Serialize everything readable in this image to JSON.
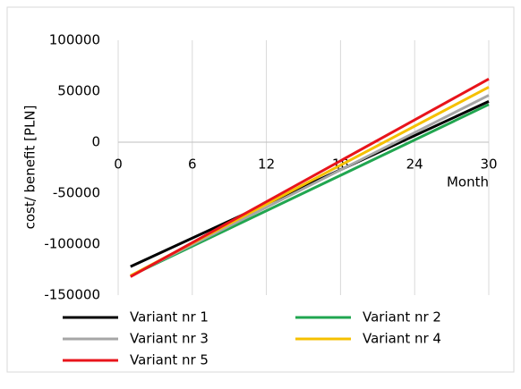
{
  "chart_data": {
    "type": "line",
    "x_label": "Month",
    "y_label": "cost/ benefit [PLN]",
    "x": [
      1,
      30
    ],
    "series": [
      {
        "name": "Variant nr 1",
        "color": "#000000",
        "values": [
          -122000,
          40000
        ]
      },
      {
        "name": "Variant nr 2",
        "color": "#21a650",
        "values": [
          -131000,
          37000
        ]
      },
      {
        "name": "Variant nr 3",
        "color": "#a6a6a6",
        "values": [
          -131000,
          46000
        ]
      },
      {
        "name": "Variant nr 4",
        "color": "#f5c000",
        "values": [
          -131000,
          54000
        ]
      },
      {
        "name": "Variant nr 5",
        "color": "#e8141b",
        "values": [
          -132000,
          62000
        ]
      }
    ],
    "xlim": [
      0,
      30
    ],
    "xticks": [
      0,
      6,
      12,
      18,
      24,
      30
    ],
    "ylim": [
      -150000,
      100000
    ],
    "yticks": [
      -150000,
      -100000,
      -50000,
      0,
      50000,
      100000
    ],
    "grid": true,
    "legend": "bottom"
  }
}
